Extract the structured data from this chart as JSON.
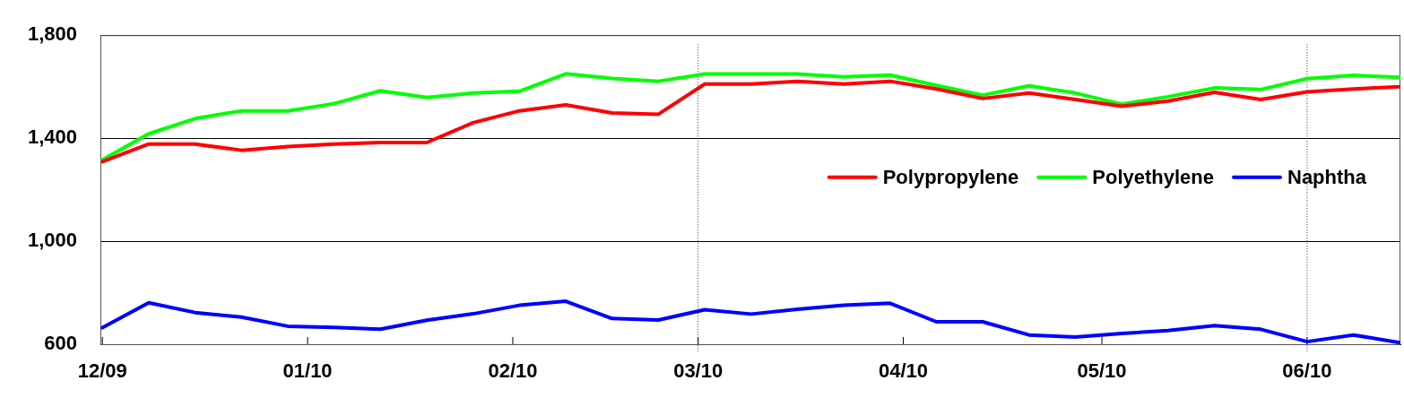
{
  "chart_data": {
    "type": "line",
    "x": [
      "2009-12-01",
      "2009-12-08",
      "2009-12-15",
      "2009-12-22",
      "2009-12-29",
      "2010-01-05",
      "2010-01-12",
      "2010-01-19",
      "2010-01-26",
      "2010-02-02",
      "2010-02-09",
      "2010-02-16",
      "2010-02-23",
      "2010-03-02",
      "2010-03-09",
      "2010-03-16",
      "2010-03-23",
      "2010-03-30",
      "2010-04-06",
      "2010-04-13",
      "2010-04-20",
      "2010-04-27",
      "2010-05-04",
      "2010-05-11",
      "2010-05-18",
      "2010-05-25",
      "2010-06-01",
      "2010-06-08",
      "2010-06-15"
    ],
    "series": [
      {
        "name": "Polypropylene",
        "color": "#ff0000",
        "values": [
          1309,
          1377,
          1377,
          1353,
          1367,
          1377,
          1383,
          1383,
          1460,
          1506,
          1529,
          1498,
          1493,
          1610,
          1610,
          1621,
          1610,
          1621,
          1591,
          1554,
          1575,
          1550,
          1524,
          1544,
          1578,
          1550,
          1580,
          1591,
          1600
        ]
      },
      {
        "name": "Polyethylene",
        "color": "#00ff00",
        "values": [
          1316,
          1417,
          1476,
          1506,
          1506,
          1534,
          1584,
          1558,
          1575,
          1582,
          1650,
          1632,
          1621,
          1649,
          1649,
          1649,
          1638,
          1645,
          1605,
          1567,
          1603,
          1575,
          1532,
          1561,
          1595,
          1589,
          1631,
          1644,
          1636
        ]
      },
      {
        "name": "Naphtha",
        "color": "#0000ff",
        "values": [
          664,
          761,
          723,
          705,
          670,
          665,
          658,
          693,
          718,
          751,
          767,
          700,
          694,
          734,
          717,
          736,
          751,
          759,
          687,
          687,
          636,
          628,
          642,
          653,
          672,
          658,
          610,
          636,
          606
        ]
      }
    ],
    "xlim": [
      "2009-12-01",
      "2010-06-15"
    ],
    "xticks": [
      {
        "value": "2009-12-01",
        "label": "12/09"
      },
      {
        "value": "2010-01-01",
        "label": "01/10"
      },
      {
        "value": "2010-02-01",
        "label": "02/10"
      },
      {
        "value": "2010-03-01",
        "label": "03/10"
      },
      {
        "value": "2010-04-01",
        "label": "04/10"
      },
      {
        "value": "2010-05-01",
        "label": "05/10"
      },
      {
        "value": "2010-06-01",
        "label": "06/10"
      }
    ],
    "ylim": [
      600,
      1800
    ],
    "yticks": [
      {
        "value": 600,
        "label": "600"
      },
      {
        "value": 1000,
        "label": "1,000"
      },
      {
        "value": 1400,
        "label": "1,400"
      },
      {
        "value": 1800,
        "label": "1,800"
      }
    ],
    "grid": "y",
    "legend": "right",
    "marker": "none",
    "line_style": "solid",
    "ref_lines": [
      {
        "axis": "x",
        "value": "2010-03-01",
        "line_style": "dotted"
      },
      {
        "axis": "x",
        "value": "2010-06-01",
        "line_style": "dotted"
      }
    ]
  }
}
